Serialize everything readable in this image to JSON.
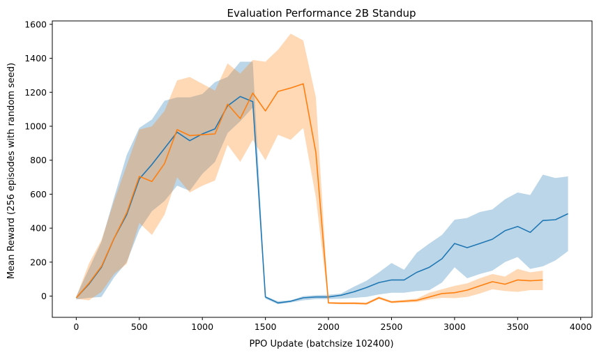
{
  "chart_data": {
    "type": "line",
    "title": "Evaluation Performance 2B Standup",
    "xlabel": "PPO Update (batchsize 102400)",
    "ylabel": "Mean Reward (256 episodes with random seed)",
    "xlim": [
      -190,
      4090
    ],
    "ylim": [
      -125,
      1620
    ],
    "xticks": [
      0,
      500,
      1000,
      1500,
      2000,
      2500,
      3000,
      3500,
      4000
    ],
    "yticks": [
      0,
      200,
      400,
      600,
      800,
      1000,
      1200,
      1400,
      1600
    ],
    "grid": false,
    "series": [
      {
        "color": "#1f77b4",
        "band_color": "#1f77b4",
        "x": [
          0,
          100,
          200,
          300,
          400,
          500,
          600,
          700,
          800,
          900,
          1000,
          1100,
          1200,
          1300,
          1400,
          1500,
          1600,
          1700,
          1800,
          1900,
          2000,
          2100,
          2200,
          2300,
          2400,
          2500,
          2600,
          2700,
          2800,
          2900,
          3000,
          3100,
          3200,
          3300,
          3400,
          3500,
          3600,
          3700,
          3800,
          3900
        ],
        "values": [
          -10,
          70,
          170,
          340,
          480,
          690,
          775,
          870,
          965,
          915,
          955,
          985,
          1120,
          1175,
          1145,
          -5,
          -40,
          -30,
          -10,
          -5,
          -5,
          5,
          25,
          50,
          80,
          95,
          95,
          140,
          170,
          220,
          310,
          285,
          310,
          335,
          385,
          410,
          375,
          445,
          450,
          485
        ],
        "lower": [
          -20,
          -10,
          -5,
          110,
          200,
          390,
          500,
          560,
          650,
          620,
          720,
          790,
          960,
          1030,
          1110,
          -15,
          -48,
          -38,
          -25,
          -18,
          -18,
          -15,
          -10,
          -5,
          10,
          20,
          20,
          30,
          35,
          80,
          170,
          105,
          130,
          150,
          200,
          230,
          160,
          175,
          210,
          265
        ],
        "upper": [
          0,
          160,
          320,
          580,
          830,
          990,
          1040,
          1150,
          1170,
          1170,
          1190,
          1260,
          1290,
          1380,
          1380,
          0,
          -30,
          -25,
          0,
          5,
          8,
          15,
          55,
          90,
          140,
          195,
          155,
          255,
          310,
          360,
          450,
          460,
          495,
          510,
          570,
          610,
          595,
          715,
          695,
          705
        ]
      },
      {
        "color": "#ff7f0e",
        "band_color": "#ff7f0e",
        "x": [
          0,
          100,
          200,
          300,
          400,
          500,
          600,
          700,
          800,
          900,
          1000,
          1100,
          1200,
          1300,
          1400,
          1500,
          1600,
          1700,
          1800,
          1900,
          2000,
          2100,
          2200,
          2300,
          2400,
          2500,
          2600,
          2700,
          2800,
          2900,
          3000,
          3100,
          3200,
          3300,
          3400,
          3500,
          3600,
          3700
        ],
        "values": [
          -10,
          75,
          175,
          340,
          490,
          705,
          675,
          780,
          980,
          945,
          950,
          955,
          1130,
          1045,
          1195,
          1090,
          1205,
          1225,
          1250,
          845,
          -40,
          -42,
          -42,
          -45,
          -10,
          -35,
          -30,
          -25,
          -5,
          15,
          20,
          35,
          60,
          85,
          70,
          95,
          90,
          95
        ],
        "lower": [
          -15,
          -25,
          25,
          130,
          190,
          430,
          360,
          480,
          700,
          610,
          650,
          680,
          890,
          790,
          920,
          800,
          950,
          920,
          990,
          580,
          -45,
          -48,
          -48,
          -52,
          -18,
          -42,
          -38,
          -35,
          -20,
          -10,
          -12,
          -5,
          15,
          40,
          30,
          25,
          35,
          35
        ],
        "upper": [
          -5,
          190,
          330,
          560,
          770,
          980,
          1000,
          1090,
          1270,
          1290,
          1250,
          1210,
          1370,
          1310,
          1390,
          1380,
          1450,
          1545,
          1505,
          1170,
          -35,
          -36,
          -35,
          -38,
          -2,
          -28,
          -22,
          -15,
          20,
          40,
          60,
          75,
          105,
          130,
          115,
          160,
          140,
          150
        ]
      }
    ]
  }
}
